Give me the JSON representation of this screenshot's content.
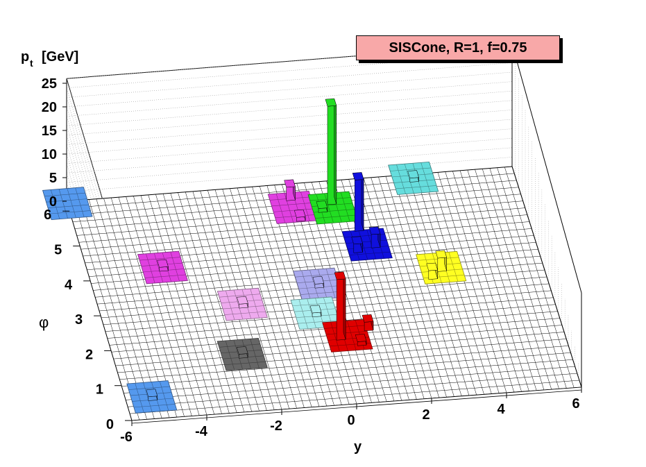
{
  "chart_data": {
    "type": "lego3d",
    "title": "SISCone, R=1, f=0.75",
    "zlabel": "p",
    "zlabel_sub": "t",
    "zlabel_unit": "[GeV]",
    "xlabel": "y",
    "ylabel": "φ",
    "xlim": [
      -6,
      6
    ],
    "ylim": [
      0,
      6.283
    ],
    "zlim": [
      0,
      26
    ],
    "x_ticks": [
      "-6",
      "-4",
      "-2",
      "0",
      "2",
      "4",
      "6"
    ],
    "y_ticks": [
      "0",
      "1",
      "2",
      "3",
      "4",
      "5",
      "6"
    ],
    "z_ticks": [
      "0",
      "5",
      "10",
      "15",
      "20",
      "25"
    ],
    "jets": [
      {
        "color": "#e00000",
        "y": 0.3,
        "phi": 1.9,
        "towers": [
          {
            "dy": -0.2,
            "dphi": 0.0,
            "pt": 13
          },
          {
            "dy": 0.6,
            "dphi": 0.2,
            "pt": 2
          },
          {
            "dy": 0.3,
            "dphi": -0.2,
            "pt": 1
          }
        ]
      },
      {
        "color": "#22dd22",
        "y": 0.95,
        "phi": 5.5,
        "towers": [
          {
            "dy": 0.0,
            "dphi": 0.2,
            "pt": 21
          },
          {
            "dy": -0.3,
            "dphi": 0.0,
            "pt": 1
          }
        ]
      },
      {
        "color": "#1010dd",
        "y": 1.55,
        "phi": 4.4,
        "towers": [
          {
            "dy": -0.1,
            "dphi": 0.5,
            "pt": 11
          },
          {
            "dy": 0.2,
            "dphi": 0.0,
            "pt": 3
          },
          {
            "dy": -0.3,
            "dphi": -0.1,
            "pt": 2
          }
        ]
      },
      {
        "color": "#e040e0",
        "y": -0.1,
        "phi": 5.6,
        "towers": [
          {
            "dy": 0.0,
            "dphi": 0.3,
            "pt": 3
          },
          {
            "dy": 0.1,
            "dphi": -0.3,
            "pt": 1
          }
        ]
      },
      {
        "color": "#ffff22",
        "y": 3.3,
        "phi": 3.6,
        "towers": [
          {
            "dy": 0.0,
            "dphi": 0.0,
            "pt": 3
          },
          {
            "dy": -0.3,
            "dphi": -0.2,
            "pt": 2
          }
        ]
      },
      {
        "color": "#aaaaee",
        "y": -0.05,
        "phi": 3.4,
        "towers": [
          {
            "dy": 0.0,
            "dphi": 0.0,
            "pt": 1
          }
        ]
      },
      {
        "color": "#aaeeee",
        "y": -0.35,
        "phi": 2.6,
        "towers": [
          {
            "dy": 0.0,
            "dphi": 0.0,
            "pt": 1
          }
        ]
      },
      {
        "color": "#66dddd",
        "y": 3.3,
        "phi": 6.15,
        "towers": [
          {
            "dy": 0.0,
            "dphi": 0.0,
            "pt": 1
          }
        ]
      },
      {
        "color": "#e040e0",
        "y": -4.0,
        "phi": 4.2,
        "towers": [
          {
            "dy": 0.0,
            "dphi": 0.0,
            "pt": 1
          }
        ]
      },
      {
        "color": "#eeaaee",
        "y": -2.2,
        "phi": 3.0,
        "towers": [
          {
            "dy": 0.0,
            "dphi": 0.0,
            "pt": 1
          }
        ]
      },
      {
        "color": "#666666",
        "y": -2.6,
        "phi": 1.6,
        "towers": [
          {
            "dy": 0.0,
            "dphi": 0.0,
            "pt": 1
          }
        ]
      },
      {
        "color": "#5599ee",
        "y": -5.3,
        "phi": 0.6,
        "towers": [
          {
            "dy": 0.0,
            "dphi": 0.0,
            "pt": 1
          }
        ]
      },
      {
        "color": "#5599ee",
        "y": -6.0,
        "phi": 6.2,
        "towers": [
          {
            "dy": 0.0,
            "dphi": 0.0,
            "pt": 0
          }
        ]
      }
    ]
  }
}
